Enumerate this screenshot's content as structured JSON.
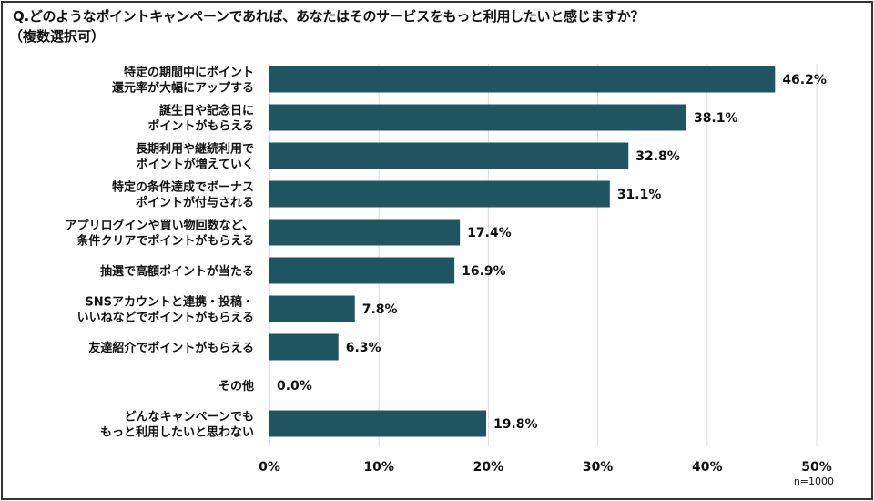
{
  "chart_data": {
    "type": "bar",
    "orientation": "horizontal",
    "title": "Q.どのようなポイントキャンペーンであれば、あなたはそのサービスをもっと利用したいと感じますか？",
    "subtitle": "（複数選択可）",
    "categories": [
      [
        "特定の期間中にポイント",
        "還元率が大幅にアップする"
      ],
      [
        "誕生日や記念日に",
        "ポイントがもらえる"
      ],
      [
        "長期利用や継続利用で",
        "ポイントが増えていく"
      ],
      [
        "特定の条件達成でボーナス",
        "ポイントが付与される"
      ],
      [
        "アプリログインや買い物回数など、",
        "条件クリアでポイントがもらえる"
      ],
      [
        "抽選で高額ポイントが当たる"
      ],
      [
        "SNSアカウントと連携・投稿・",
        "いいねなどでポイントがもらえる"
      ],
      [
        "友達紹介でポイントがもらえる"
      ],
      [
        "その他"
      ],
      [
        "どんなキャンペーンでも",
        "もっと利用したいと思わない"
      ]
    ],
    "values": [
      46.2,
      38.1,
      32.8,
      31.1,
      17.4,
      16.9,
      7.8,
      6.3,
      0.0,
      19.8
    ],
    "value_labels": [
      "46.2%",
      "38.1%",
      "32.8%",
      "31.1%",
      "17.4%",
      "16.9%",
      "7.8%",
      "6.3%",
      "0.0%",
      "19.8%"
    ],
    "xlim": [
      0,
      50
    ],
    "xticks": [
      "0%",
      "10%",
      "20%",
      "30%",
      "40%",
      "50%"
    ],
    "grid": true,
    "note": "n=1000",
    "bar_color": "#1f5560"
  }
}
